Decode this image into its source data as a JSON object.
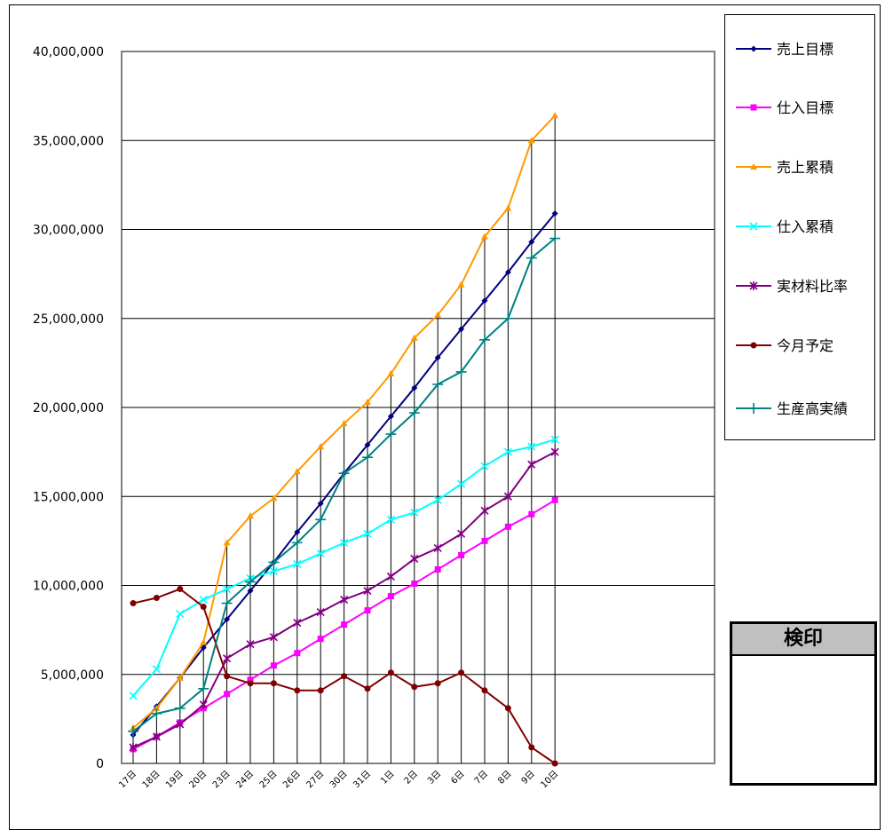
{
  "chart_data": {
    "type": "line",
    "categories": [
      "17日",
      "18日",
      "19日",
      "20日",
      "23日",
      "24日",
      "25日",
      "26日",
      "27日",
      "30日",
      "31日",
      "1日",
      "2日",
      "3日",
      "6日",
      "7日",
      "8日",
      "9日",
      "10日"
    ],
    "ylim": [
      0,
      40000000
    ],
    "yticks": [
      0,
      5000000,
      10000000,
      15000000,
      20000000,
      25000000,
      30000000,
      35000000,
      40000000
    ],
    "ytick_labels": [
      "0",
      "5,000,000",
      "10,000,000",
      "15,000,000",
      "20,000,000",
      "25,000,000",
      "30,000,000",
      "35,000,000",
      "40,000,000"
    ],
    "grid": true,
    "legend_position": "right",
    "series": [
      {
        "name": "売上目標",
        "color": "#000080",
        "marker": "diamond",
        "values": [
          1600000,
          3200000,
          4800000,
          6500000,
          8100000,
          9700000,
          11300000,
          13000000,
          14600000,
          16300000,
          17900000,
          19500000,
          21100000,
          22800000,
          24400000,
          26000000,
          27600000,
          29300000,
          30900000
        ]
      },
      {
        "name": "仕入目標",
        "color": "#ff00ff",
        "marker": "square",
        "values": [
          800000,
          1500000,
          2300000,
          3100000,
          3900000,
          4700000,
          5500000,
          6200000,
          7000000,
          7800000,
          8600000,
          9400000,
          10100000,
          10900000,
          11700000,
          12500000,
          13300000,
          14000000,
          14800000
        ]
      },
      {
        "name": "売上累積",
        "color": "#ff9900",
        "marker": "triangle",
        "values": [
          2000000,
          3100000,
          4800000,
          6800000,
          12400000,
          13900000,
          14900000,
          16400000,
          17800000,
          19100000,
          20300000,
          21900000,
          23900000,
          25200000,
          26900000,
          29600000,
          31200000,
          35000000,
          36400000
        ]
      },
      {
        "name": "仕入累積",
        "color": "#00ffff",
        "marker": "x",
        "values": [
          3800000,
          5300000,
          8400000,
          9200000,
          9800000,
          10400000,
          10800000,
          11200000,
          11800000,
          12400000,
          12900000,
          13700000,
          14100000,
          14800000,
          15700000,
          16700000,
          17500000,
          17800000,
          18200000
        ]
      },
      {
        "name": "実材料比率",
        "color": "#800080",
        "marker": "star",
        "values": [
          900000,
          1500000,
          2200000,
          3300000,
          5900000,
          6700000,
          7100000,
          7900000,
          8500000,
          9200000,
          9700000,
          10500000,
          11500000,
          12100000,
          12900000,
          14200000,
          15000000,
          16800000,
          17500000
        ]
      },
      {
        "name": "今月予定",
        "color": "#800000",
        "marker": "circle",
        "values": [
          9000000,
          9300000,
          9800000,
          8800000,
          4900000,
          4500000,
          4500000,
          4100000,
          4100000,
          4900000,
          4200000,
          5100000,
          4300000,
          4500000,
          5100000,
          4100000,
          3100000,
          900000,
          0
        ]
      },
      {
        "name": "生産高実績",
        "color": "#008080",
        "marker": "plus",
        "values": [
          1800000,
          2800000,
          3100000,
          4200000,
          9000000,
          10200000,
          11300000,
          12400000,
          13700000,
          16300000,
          17200000,
          18500000,
          19700000,
          21300000,
          22000000,
          23800000,
          25000000,
          28400000,
          29500000
        ]
      }
    ]
  },
  "stamp_box": {
    "title": "検印"
  }
}
